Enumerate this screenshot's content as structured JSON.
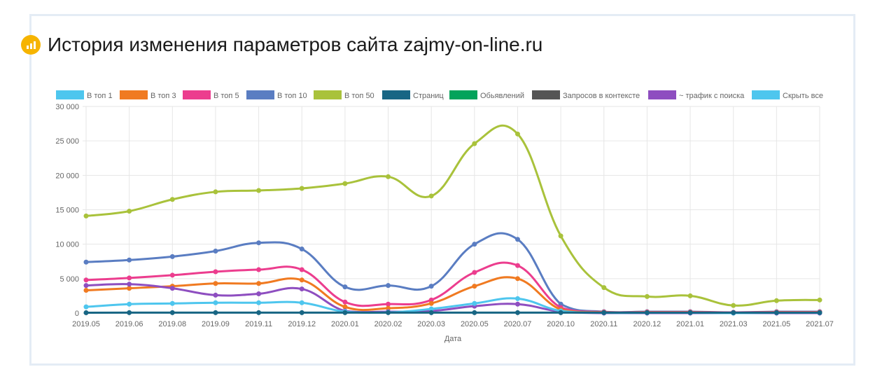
{
  "title": "История изменения параметров сайта zajmy-on-line.ru",
  "chart_data": {
    "type": "line",
    "title": "История изменения параметров сайта zajmy-on-line.ru",
    "xlabel": "Дата",
    "ylabel": "",
    "ylim": [
      0,
      30000
    ],
    "y_ticks": [
      "0",
      "5 000",
      "10 000",
      "15 000",
      "20 000",
      "25 000",
      "30 000"
    ],
    "grid": true,
    "legend_position": "top",
    "categories": [
      "2019.05",
      "2019.06",
      "2019.08",
      "2019.09",
      "2019.11",
      "2019.12",
      "2020.01",
      "2020.02",
      "2020.03",
      "2020.05",
      "2020.07",
      "2020.10",
      "2020.11",
      "2020.12",
      "2021.01",
      "2021.03",
      "2021.05",
      "2021.07"
    ],
    "legend": [
      {
        "name": "В топ 1",
        "color": "#4ec6ee"
      },
      {
        "name": "В топ 3",
        "color": "#f07a21"
      },
      {
        "name": "В топ 5",
        "color": "#ec3d8e"
      },
      {
        "name": "В топ 10",
        "color": "#5a7dc2"
      },
      {
        "name": "В топ 50",
        "color": "#a9c23b"
      },
      {
        "name": "Страниц",
        "color": "#186684"
      },
      {
        "name": "Обьявлений",
        "color": "#03a35b"
      },
      {
        "name": "Запросов в контексте",
        "color": "#555555"
      },
      {
        "name": "~ трафик с поиска",
        "color": "#8e4ec0"
      },
      {
        "name": "Скрыть все",
        "color": "#4ec6ee"
      }
    ],
    "series": [
      {
        "name": "В топ 50",
        "color": "#a9c23b",
        "values": [
          14100,
          14800,
          16500,
          17600,
          17800,
          18100,
          18800,
          19800,
          17000,
          24600,
          26000,
          11200,
          3700,
          2400,
          2500,
          1100,
          1800,
          1900
        ]
      },
      {
        "name": "В топ 10",
        "color": "#5a7dc2",
        "values": [
          7400,
          7700,
          8200,
          9000,
          10200,
          9300,
          3800,
          4000,
          3900,
          10000,
          10700,
          1300,
          200,
          200,
          200,
          100,
          200,
          200
        ]
      },
      {
        "name": "В топ 5",
        "color": "#ec3d8e",
        "values": [
          4800,
          5100,
          5500,
          6000,
          6300,
          6300,
          1600,
          1300,
          1900,
          5900,
          6900,
          800,
          150,
          150,
          150,
          100,
          150,
          150
        ]
      },
      {
        "name": "В топ 3",
        "color": "#f07a21",
        "values": [
          3300,
          3600,
          3900,
          4300,
          4300,
          4800,
          900,
          700,
          1400,
          3900,
          5000,
          500,
          100,
          100,
          100,
          50,
          100,
          100
        ]
      },
      {
        "name": "~ трафик с поиска",
        "color": "#8e4ec0",
        "values": [
          4000,
          4200,
          3600,
          2600,
          2800,
          3500,
          300,
          200,
          300,
          1000,
          1300,
          200,
          0,
          0,
          0,
          0,
          0,
          0
        ]
      },
      {
        "name": "В топ 1",
        "color": "#4ec6ee",
        "values": [
          900,
          1300,
          1400,
          1500,
          1500,
          1500,
          200,
          100,
          600,
          1400,
          2100,
          300,
          50,
          50,
          50,
          0,
          50,
          50
        ]
      },
      {
        "name": "Страниц",
        "color": "#186684",
        "values": [
          50,
          60,
          60,
          60,
          60,
          60,
          60,
          60,
          60,
          60,
          60,
          60,
          60,
          60,
          60,
          60,
          60,
          60
        ]
      }
    ]
  }
}
